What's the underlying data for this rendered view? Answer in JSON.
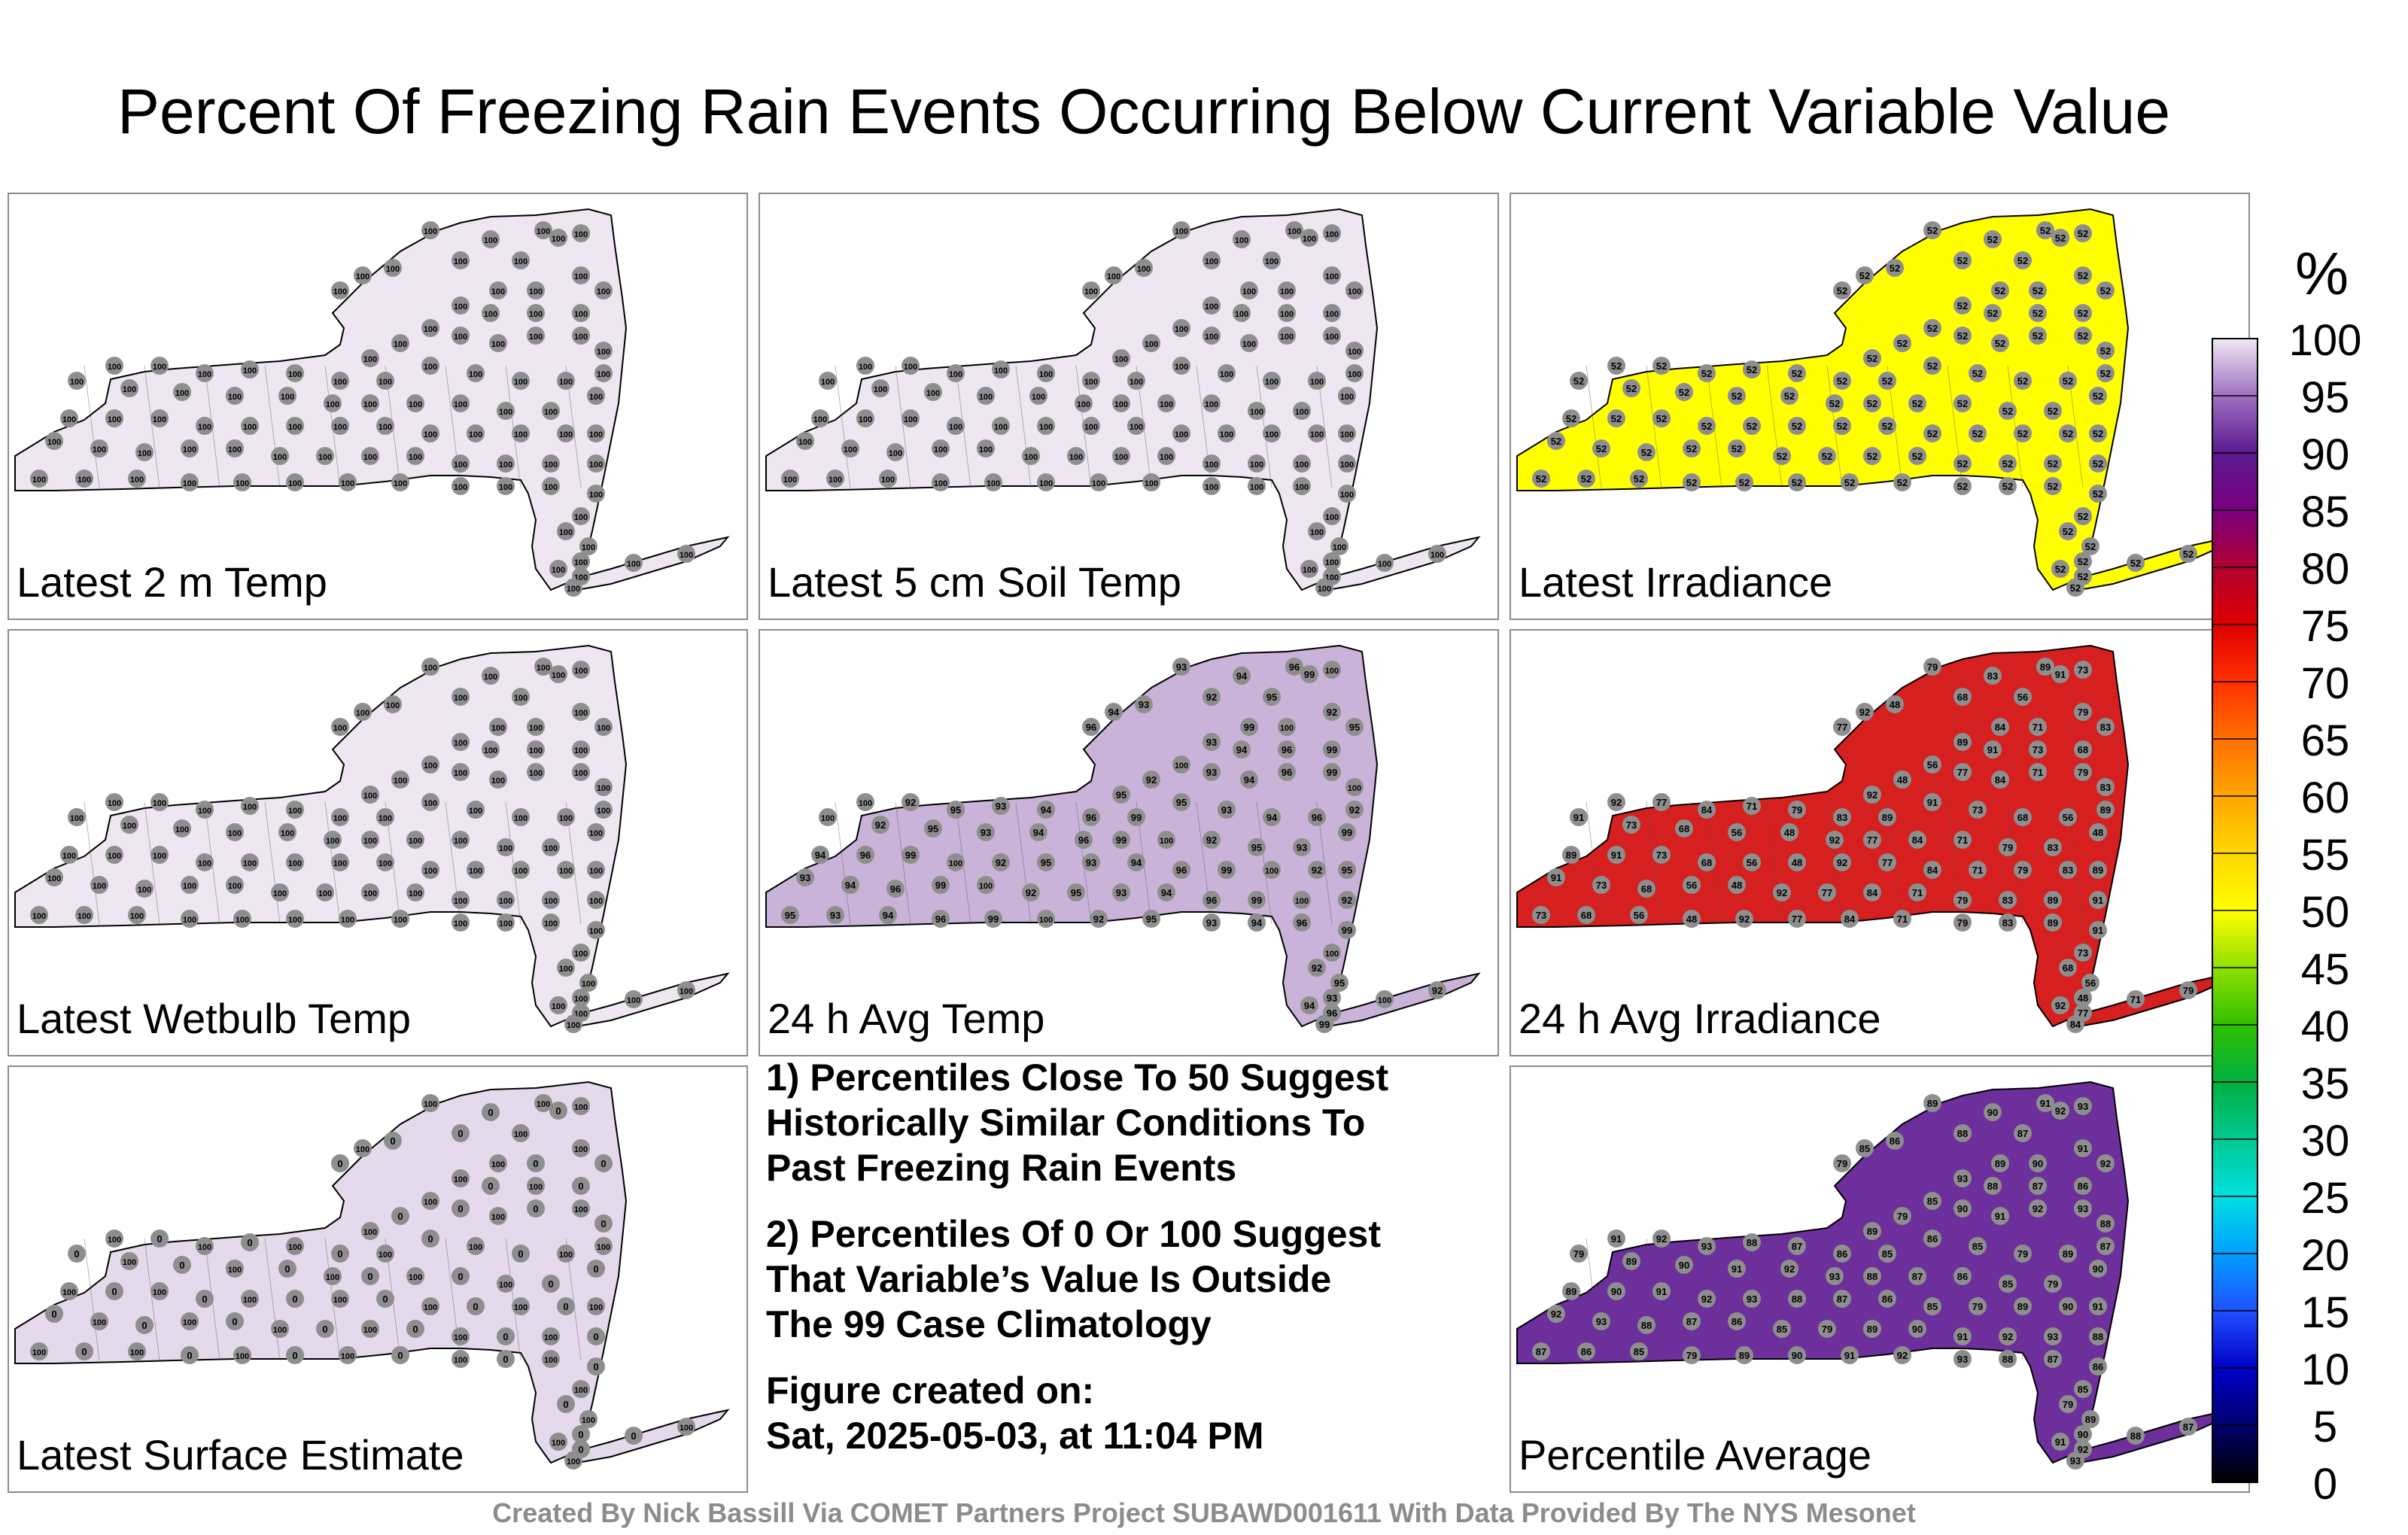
{
  "title": "Percent Of Freezing Rain Events Occurring Below Current Variable Value",
  "panels": [
    {
      "label": "Latest 2 m Temp",
      "fill": "#eee6f1",
      "station_values": [
        100
      ]
    },
    {
      "label": "Latest 5 cm Soil Temp",
      "fill": "#eee6f1",
      "station_values": [
        100
      ]
    },
    {
      "label": "Latest Irradiance",
      "fill": "#ffff00",
      "station_values": [
        52
      ]
    },
    {
      "label": "Latest Wetbulb Temp",
      "fill": "#eee6f1",
      "station_values": [
        100
      ]
    },
    {
      "label": "24 h Avg Temp",
      "fill": "#c9b3d9",
      "station_values": [
        93,
        94,
        96,
        99,
        100,
        92,
        95
      ]
    },
    {
      "label": "24 h Avg Irradiance",
      "fill": "#d61f1f",
      "station_values": [
        79,
        83,
        89,
        91,
        73,
        68,
        56,
        48,
        92,
        77,
        84,
        71
      ]
    },
    {
      "label": "Latest Surface Estimate",
      "fill": "#e5d9ec",
      "station_values": [
        100,
        0
      ]
    },
    {
      "label": "Percentile Average",
      "fill": "#6d2f9c",
      "station_values": [
        89,
        90,
        91,
        92,
        93,
        88,
        87,
        86,
        85,
        79
      ]
    }
  ],
  "notes": [
    "1) Percentiles Close To 50 Suggest\nHistorically Similar Conditions To\nPast Freezing Rain Events",
    "2) Percentiles Of 0 Or 100 Suggest\nThat Variable’s Value Is Outside\nThe 99 Case Climatology",
    "Figure created on:\nSat, 2025-05-03, at 11:04 PM"
  ],
  "colorbar": {
    "unit": "%",
    "ticks": [
      "0",
      "5",
      "10",
      "15",
      "20",
      "25",
      "30",
      "35",
      "40",
      "45",
      "50",
      "55",
      "60",
      "65",
      "70",
      "75",
      "80",
      "85",
      "90",
      "95",
      "100"
    ],
    "colors": [
      "#000000",
      "#00006e",
      "#0000c8",
      "#2050ff",
      "#00a0ff",
      "#00e0e0",
      "#00c890",
      "#00b040",
      "#30c000",
      "#90e000",
      "#ffff00",
      "#ffd700",
      "#ffa500",
      "#ff7000",
      "#ff3000",
      "#e00000",
      "#b00030",
      "#7a0080",
      "#5a1a90",
      "#a070c0",
      "#f0e8f4"
    ]
  },
  "footer": "Created By Nick Bassill Via COMET Partners Project SUBAWD001611 With Data Provided By The NYS Mesonet"
}
